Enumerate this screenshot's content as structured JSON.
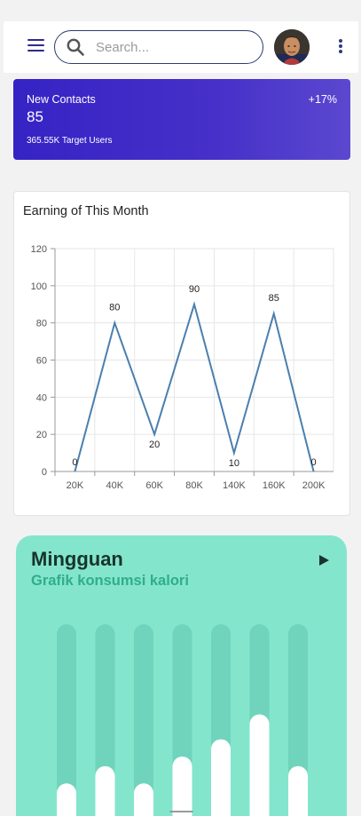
{
  "appbar": {
    "menu_icon": "hamburger-menu-icon",
    "search_icon": "search-icon",
    "search_placeholder": "Search...",
    "search_value": "",
    "avatar_icon": "user-avatar",
    "more_icon": "more-vert-icon"
  },
  "contacts": {
    "title": "New Contacts",
    "value": "85",
    "change": "+17%",
    "subtitle": "365.55K Target Users",
    "gradient_start": "#3623c4",
    "gradient_end": "#5a48cf"
  },
  "earning_chart": {
    "title": "Earning of This Month"
  },
  "chart_data": {
    "type": "line",
    "title": "Earning of This Month",
    "categories": [
      "20K",
      "40K",
      "60K",
      "80K",
      "140K",
      "160K",
      "200K"
    ],
    "values": [
      0,
      80,
      20,
      90,
      10,
      85,
      0
    ],
    "data_labels": [
      "0",
      "80",
      "20",
      "90",
      "10",
      "85",
      "0"
    ],
    "y_ticks": [
      "0",
      "20",
      "40",
      "60",
      "80",
      "100",
      "120"
    ],
    "ylim": [
      0,
      120
    ],
    "xlabel": "",
    "ylabel": "",
    "grid": true,
    "line_color": "#4a7fae"
  },
  "weekly": {
    "title": "Mingguan",
    "subtitle": "Grafik konsumsi kalori",
    "play_icon": "play-icon",
    "bar_fill_fractions": [
      0.17,
      0.26,
      0.17,
      0.31,
      0.4,
      0.53,
      0.26
    ],
    "track_color": "#6fd4bb",
    "fill_color": "#ffffff",
    "background": "#84e5cd"
  }
}
